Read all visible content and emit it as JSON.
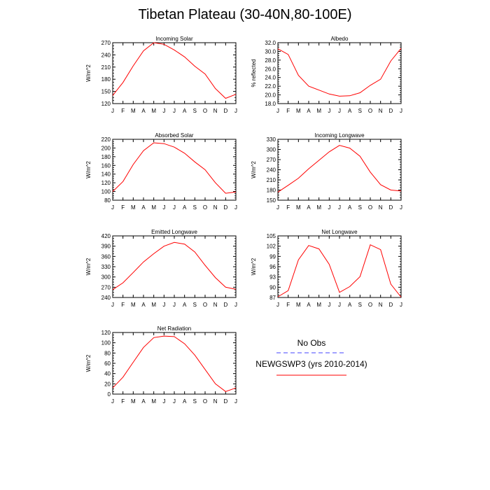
{
  "title": "Tibetan Plateau (30-40N,80-100E)",
  "months": [
    "J",
    "F",
    "M",
    "A",
    "M",
    "J",
    "J",
    "A",
    "S",
    "O",
    "N",
    "D",
    "J"
  ],
  "colors": {
    "model": "#ff0000",
    "obs": "#4444ff",
    "axis": "#000000"
  },
  "legend": {
    "obs_label": "No Obs",
    "model_label": "NEWGSWP3 (yrs 2010-2014)"
  },
  "chart_data": [
    {
      "type": "line",
      "title": "Incoming Solar",
      "ylabel": "W/m^2",
      "ylim": [
        120,
        270
      ],
      "yticks": [
        120,
        150,
        180,
        210,
        240,
        270
      ],
      "yticklabels": [
        "120",
        "150",
        "180",
        "210",
        "240",
        "270"
      ],
      "series": [
        {
          "values": [
            140,
            172,
            213,
            250,
            270,
            266,
            252,
            235,
            212,
            193,
            157,
            133,
            143
          ]
        }
      ]
    },
    {
      "type": "line",
      "title": "Albedo",
      "ylabel": "% reflected",
      "ylim": [
        18,
        32
      ],
      "yticks": [
        18,
        20,
        22,
        24,
        26,
        28,
        30,
        32
      ],
      "yticklabels": [
        "18.0",
        "20.0",
        "22.0",
        "24.0",
        "26.0",
        "28.0",
        "30.0",
        "32.0"
      ],
      "series": [
        {
          "values": [
            30.6,
            29.3,
            24.5,
            22.0,
            21.1,
            20.2,
            19.7,
            19.8,
            20.5,
            22.2,
            23.6,
            27.8,
            30.7
          ]
        }
      ]
    },
    {
      "type": "line",
      "title": "Absorbed Solar",
      "ylabel": "W/m^2",
      "ylim": [
        80,
        220
      ],
      "yticks": [
        80,
        100,
        120,
        140,
        160,
        180,
        200,
        220
      ],
      "yticklabels": [
        "80",
        "100",
        "120",
        "140",
        "160",
        "180",
        "200",
        "220"
      ],
      "series": [
        {
          "values": [
            100,
            123,
            162,
            194,
            212,
            210,
            202,
            188,
            168,
            150,
            120,
            96,
            99
          ]
        }
      ]
    },
    {
      "type": "line",
      "title": "Incoming Longwave",
      "ylabel": "W/m^2",
      "ylim": [
        150,
        330
      ],
      "yticks": [
        150,
        180,
        210,
        240,
        270,
        300,
        330
      ],
      "yticklabels": [
        "150",
        "180",
        "210",
        "240",
        "270",
        "300",
        "330"
      ],
      "series": [
        {
          "values": [
            174,
            194,
            215,
            243,
            268,
            293,
            312,
            304,
            280,
            233,
            196,
            180,
            177
          ]
        }
      ]
    },
    {
      "type": "line",
      "title": "Emitted Longwave",
      "ylabel": "W/m^2",
      "ylim": [
        240,
        420
      ],
      "yticks": [
        240,
        270,
        300,
        330,
        360,
        390,
        420
      ],
      "yticklabels": [
        "240",
        "270",
        "300",
        "330",
        "360",
        "390",
        "420"
      ],
      "series": [
        {
          "values": [
            263,
            283,
            313,
            344,
            368,
            390,
            401,
            396,
            373,
            334,
            298,
            270,
            264
          ]
        }
      ]
    },
    {
      "type": "line",
      "title": "Net Longwave",
      "ylabel": "W/m^2",
      "ylim": [
        87,
        105
      ],
      "yticks": [
        87,
        90,
        93,
        96,
        99,
        102,
        105
      ],
      "yticklabels": [
        "87",
        "90",
        "93",
        "96",
        "99",
        "102",
        "105"
      ],
      "series": [
        {
          "values": [
            87.2,
            89.0,
            98.0,
            102.2,
            101.2,
            96.7,
            88.5,
            90.2,
            93.1,
            102.4,
            101.0,
            90.9,
            87.1
          ]
        }
      ]
    },
    {
      "type": "line",
      "title": "Net Radiation",
      "ylabel": "W/m^2",
      "ylim": [
        0,
        120
      ],
      "yticks": [
        0,
        20,
        40,
        60,
        80,
        100,
        120
      ],
      "yticklabels": [
        "0",
        "20",
        "40",
        "60",
        "80",
        "100",
        "120"
      ],
      "series": [
        {
          "values": [
            12,
            33,
            62,
            91,
            110,
            113,
            112,
            98,
            76,
            48,
            20,
            5,
            12
          ]
        }
      ]
    }
  ]
}
